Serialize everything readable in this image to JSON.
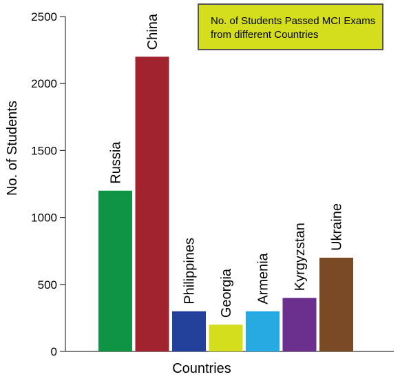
{
  "chart_data": {
    "type": "bar",
    "title_lines": [
      "No. of Students Passed MCI Exams",
      "from different Countries"
    ],
    "xlabel": "Countries",
    "ylabel": "No. of Students",
    "ylim": [
      0,
      2500
    ],
    "yticks": [
      0,
      500,
      1000,
      1500,
      2000,
      2500
    ],
    "categories": [
      "Russia",
      "China",
      "Philippines",
      "Georgia",
      "Armenia",
      "Kyrgyzstan",
      "Ukraine"
    ],
    "values": [
      1200,
      2200,
      300,
      200,
      300,
      400,
      700
    ],
    "colors": [
      "#0e9444",
      "#a0232f",
      "#23409a",
      "#d4de1c",
      "#27aae1",
      "#6b2f8e",
      "#7a4a26"
    ],
    "grid": false,
    "legend": "top-right"
  }
}
